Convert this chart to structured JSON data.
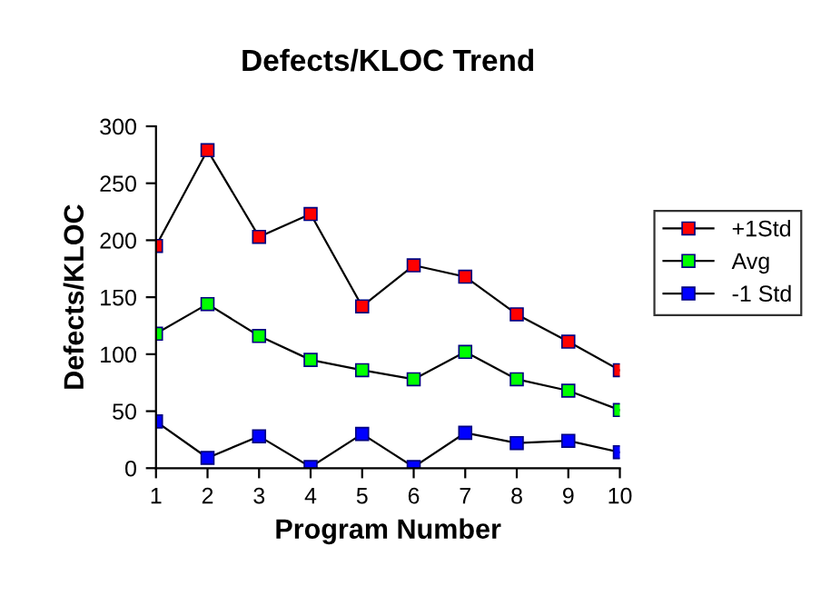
{
  "chart_data": {
    "type": "line",
    "title": "Defects/KLOC Trend",
    "xlabel": "Program Number",
    "ylabel": "Defects/KLOC",
    "x": [
      1,
      2,
      3,
      4,
      5,
      6,
      7,
      8,
      9,
      10
    ],
    "series": [
      {
        "name": "+1Std",
        "color": "#ff0000",
        "values": [
          195,
          279,
          203,
          223,
          142,
          178,
          168,
          135,
          111,
          86
        ]
      },
      {
        "name": "Avg",
        "color": "#00ff00",
        "values": [
          118,
          144,
          116,
          95,
          86,
          78,
          102,
          78,
          68,
          51
        ]
      },
      {
        "name": "-1 Std",
        "color": "#0000ff",
        "values": [
          41,
          9,
          28,
          1,
          30,
          1,
          31,
          22,
          24,
          14
        ]
      }
    ],
    "xlim": [
      1,
      10
    ],
    "xticks": [
      1,
      2,
      3,
      4,
      5,
      6,
      7,
      8,
      9,
      10
    ],
    "ylim": [
      0,
      300
    ],
    "yticks": [
      0,
      50,
      100,
      150,
      200,
      250,
      300
    ],
    "marker": "square",
    "line_style": "solid",
    "legend": "right",
    "grid": false
  }
}
